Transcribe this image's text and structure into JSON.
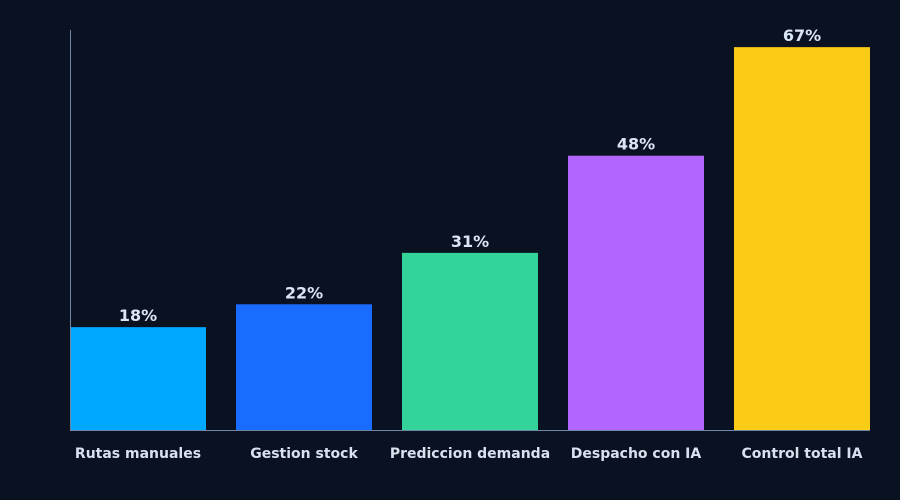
{
  "chart_data": {
    "type": "bar",
    "categories": [
      "Rutas manuales",
      "Gestion stock",
      "Prediccion demanda",
      "Despacho con IA",
      "Control total IA"
    ],
    "values": [
      18,
      22,
      31,
      48,
      67
    ],
    "value_labels": [
      "18%",
      "22%",
      "31%",
      "48%",
      "67%"
    ],
    "colors": [
      "#00a8ff",
      "#1a6cff",
      "#34d399",
      "#b366ff",
      "#facc15"
    ],
    "ylim": [
      0,
      70
    ],
    "grid": false,
    "legend": "none"
  },
  "theme": {
    "background": "#0a1120",
    "axis_color": "#6f87a6",
    "label_color": "#d7e1ef"
  }
}
